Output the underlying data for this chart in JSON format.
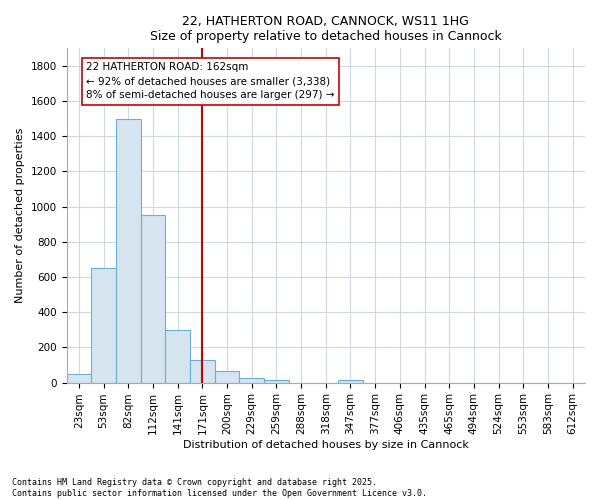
{
  "title1": "22, HATHERTON ROAD, CANNOCK, WS11 1HG",
  "title2": "Size of property relative to detached houses in Cannock",
  "xlabel": "Distribution of detached houses by size in Cannock",
  "ylabel": "Number of detached properties",
  "bar_labels": [
    "23sqm",
    "53sqm",
    "82sqm",
    "112sqm",
    "141sqm",
    "171sqm",
    "200sqm",
    "229sqm",
    "259sqm",
    "288sqm",
    "318sqm",
    "347sqm",
    "377sqm",
    "406sqm",
    "435sqm",
    "465sqm",
    "494sqm",
    "524sqm",
    "553sqm",
    "583sqm",
    "612sqm"
  ],
  "bar_values": [
    50,
    650,
    1500,
    950,
    300,
    130,
    65,
    25,
    15,
    0,
    0,
    15,
    0,
    0,
    0,
    0,
    0,
    0,
    0,
    0,
    0
  ],
  "bar_color": "#d6e4f0",
  "bar_edge_color": "#6aafd6",
  "vline_x": 5.0,
  "vline_color": "#cc0000",
  "annotation_text": "22 HATHERTON ROAD: 162sqm\n← 92% of detached houses are smaller (3,338)\n8% of semi-detached houses are larger (297) →",
  "annotation_box_facecolor": "#ffffff",
  "annotation_box_edgecolor": "#cc0000",
  "ylim": [
    0,
    1900
  ],
  "yticks": [
    0,
    200,
    400,
    600,
    800,
    1000,
    1200,
    1400,
    1600,
    1800
  ],
  "footnote1": "Contains HM Land Registry data © Crown copyright and database right 2025.",
  "footnote2": "Contains public sector information licensed under the Open Government Licence v3.0.",
  "bg_color": "#ffffff",
  "plot_bg_color": "#ffffff",
  "grid_color": "#d0d8e0",
  "title_fontsize": 9,
  "axis_label_fontsize": 8,
  "tick_fontsize": 7.5,
  "annot_fontsize": 7.5
}
